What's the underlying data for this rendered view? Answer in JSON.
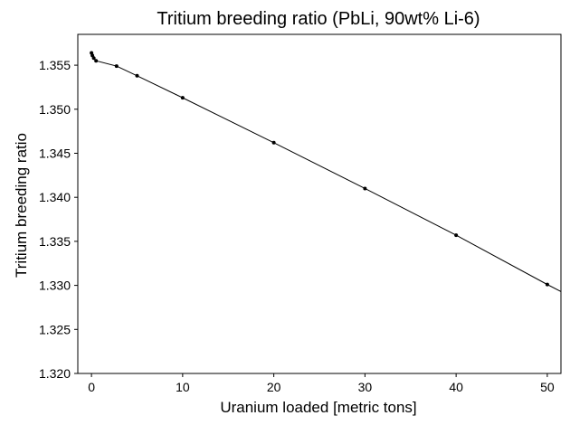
{
  "chart_data": {
    "type": "line",
    "title": "Tritium breeding ratio (PbLi, 90wt% Li-6)",
    "xlabel": "Uranium loaded [metric tons]",
    "ylabel": "Tritium breeding ratio",
    "xlim": [
      -1.5,
      51.5
    ],
    "ylim": [
      1.32,
      1.3585
    ],
    "xticks": [
      0,
      10,
      20,
      30,
      40,
      50
    ],
    "xtick_labels": [
      "0",
      "10",
      "20",
      "30",
      "40",
      "50"
    ],
    "yticks": [
      1.32,
      1.325,
      1.33,
      1.335,
      1.34,
      1.345,
      1.35,
      1.355
    ],
    "ytick_labels": [
      "1.320",
      "1.325",
      "1.330",
      "1.335",
      "1.340",
      "1.345",
      "1.350",
      "1.355"
    ],
    "grid": false,
    "series": [
      {
        "x": [
          0,
          0.1,
          0.25,
          0.5,
          2.75,
          5,
          10,
          20,
          30,
          40,
          50
        ],
        "y": [
          1.3564,
          1.3561,
          1.3558,
          1.3555,
          1.3549,
          1.3538,
          1.3513,
          1.3462,
          1.341,
          1.3357,
          1.3301
        ],
        "color": "#000000",
        "marker": "dot"
      }
    ],
    "trend_extension": {
      "x": [
        50,
        51.5
      ],
      "y": [
        1.3301,
        1.3293
      ]
    }
  }
}
